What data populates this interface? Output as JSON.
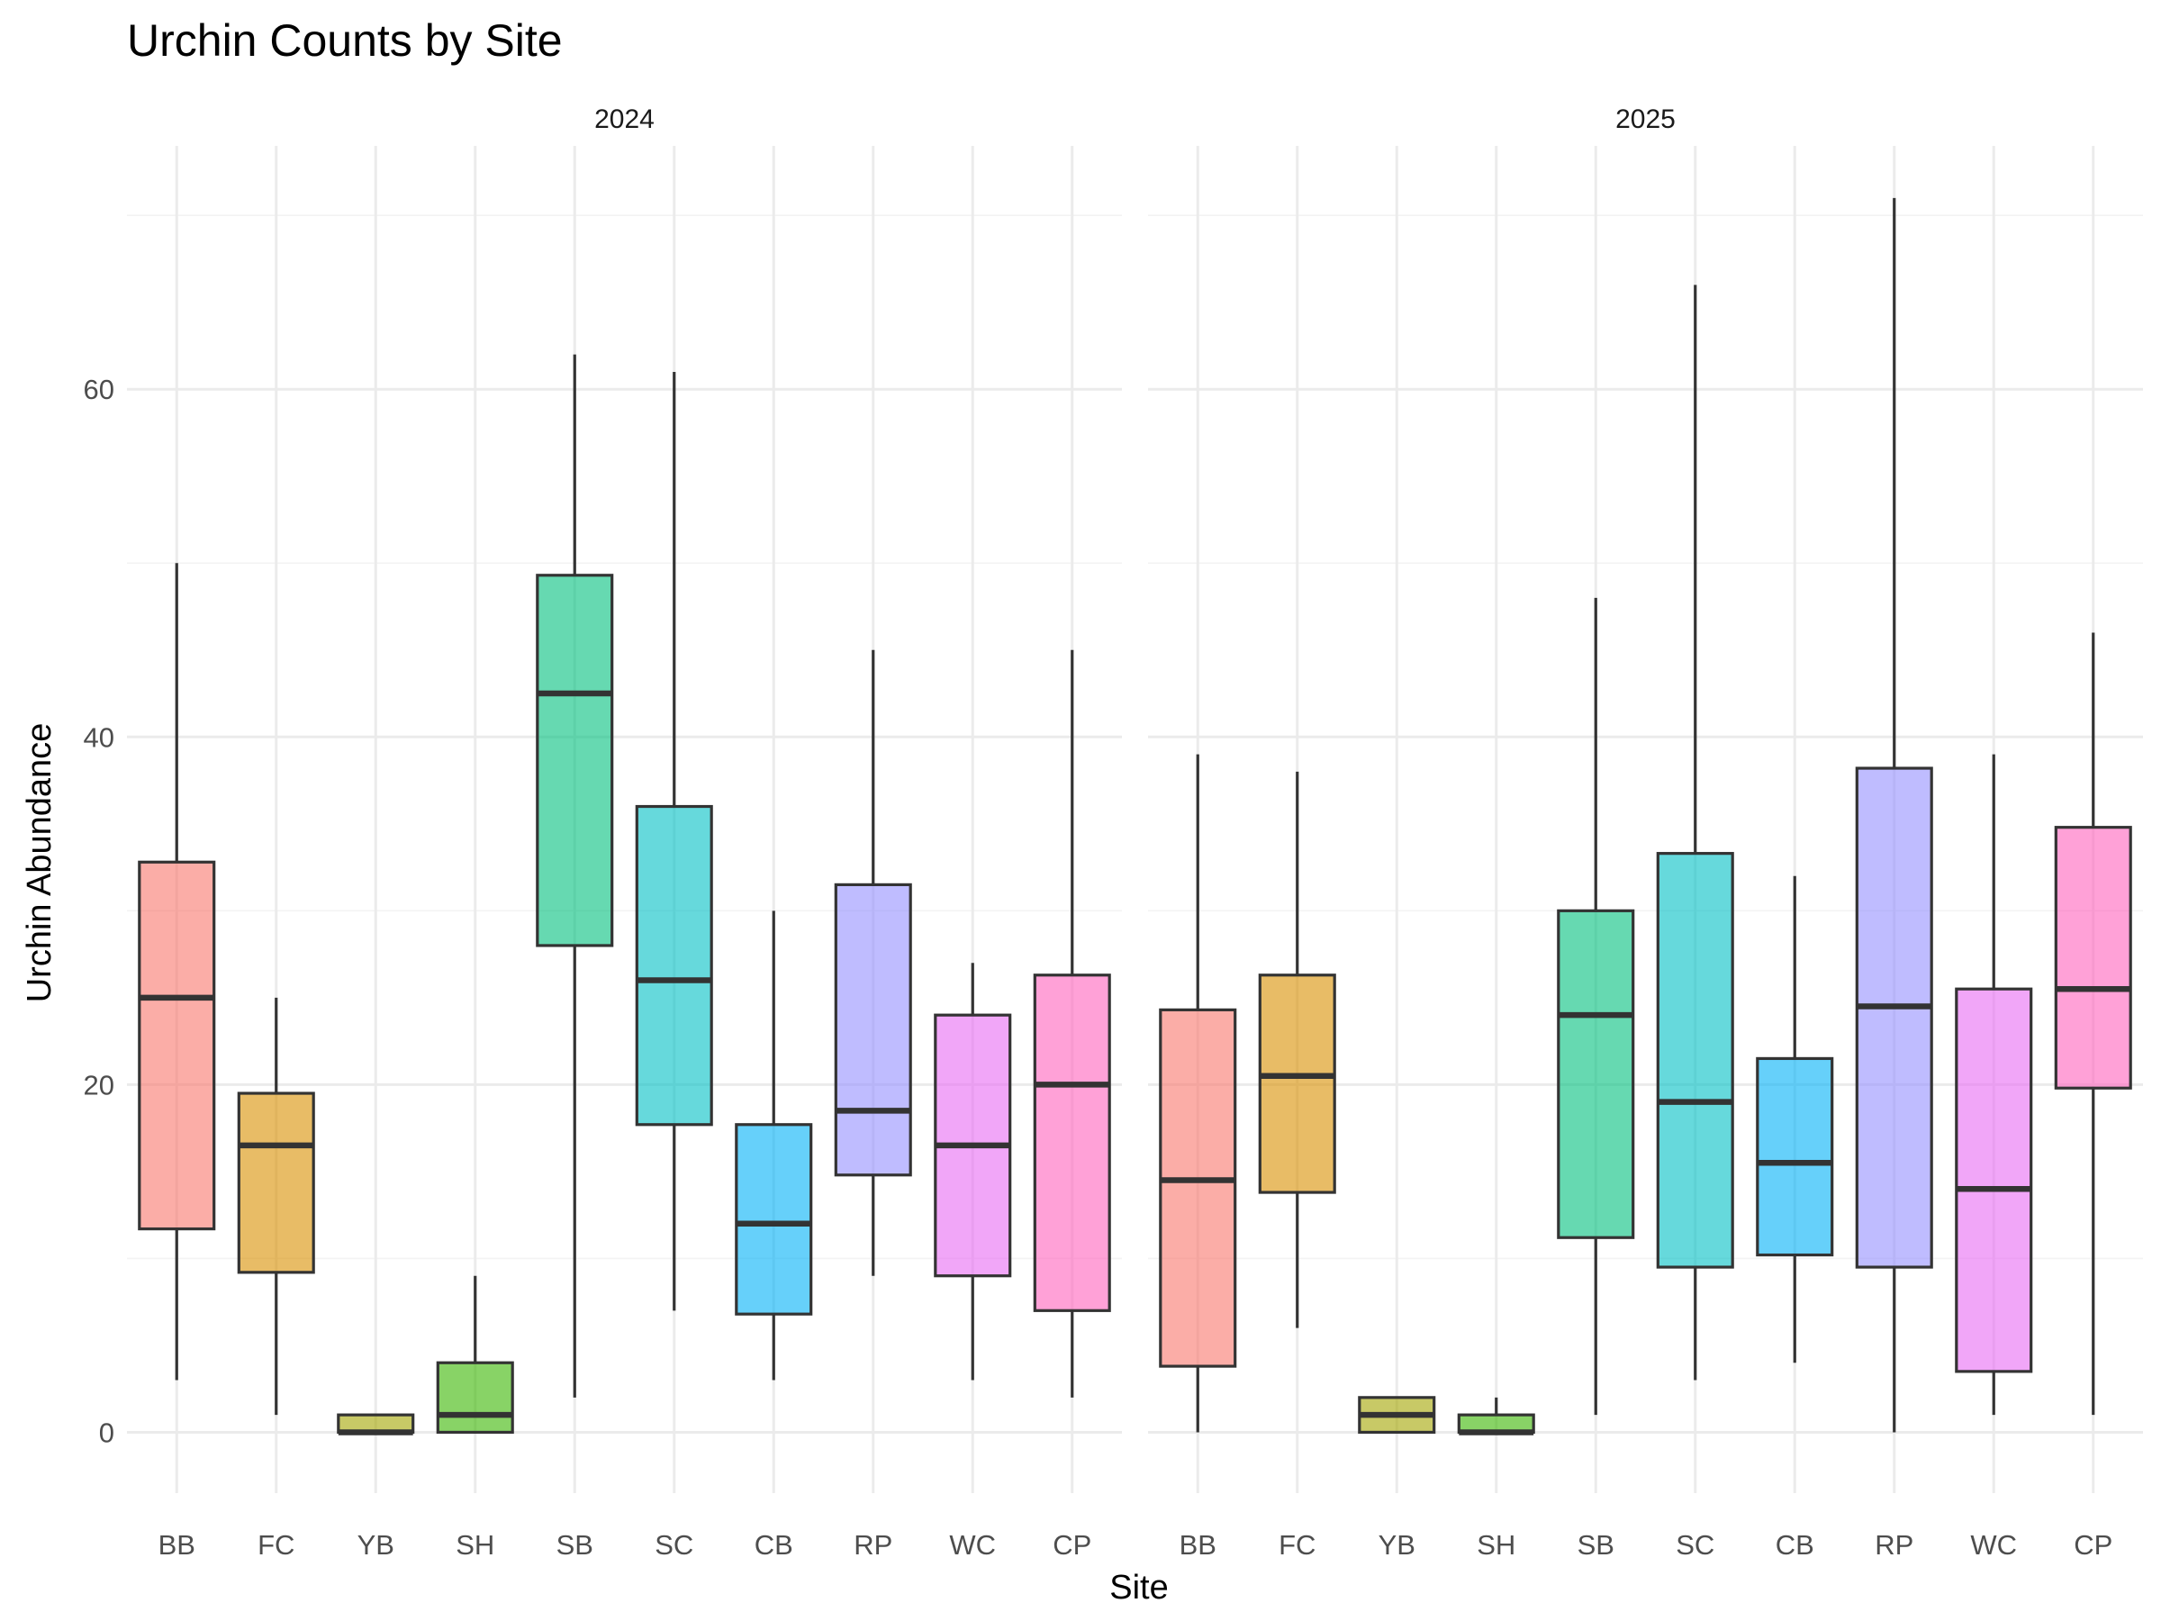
{
  "chart_data": {
    "type": "boxplot",
    "title": "Urchin Counts by Site",
    "xlabel": "Site",
    "ylabel": "Urchin Abundance",
    "ylim": [
      -3.5,
      74
    ],
    "yticks": [
      0,
      20,
      40,
      60
    ],
    "grid": true,
    "legend": "none",
    "categories": [
      "BB",
      "FC",
      "YB",
      "SH",
      "SB",
      "SC",
      "CB",
      "RP",
      "WC",
      "CP"
    ],
    "colors": [
      "#F8766D",
      "#D89000",
      "#A3A500",
      "#39B600",
      "#00BF7D",
      "#00BFC4",
      "#00B0F6",
      "#9590FF",
      "#E76BF3",
      "#FF62BC"
    ],
    "panels": [
      {
        "label": "2024",
        "boxes": [
          {
            "site": "BB",
            "min": 3,
            "q1": 11.7,
            "median": 25,
            "q3": 32.8,
            "max": 50
          },
          {
            "site": "FC",
            "min": 1,
            "q1": 9.2,
            "median": 16.5,
            "q3": 19.5,
            "max": 25
          },
          {
            "site": "YB",
            "min": 0,
            "q1": 0,
            "median": 0,
            "q3": 1,
            "max": 1
          },
          {
            "site": "SH",
            "min": 0,
            "q1": 0,
            "median": 1,
            "q3": 4,
            "max": 9
          },
          {
            "site": "SB",
            "min": 2,
            "q1": 28,
            "median": 42.5,
            "q3": 49.3,
            "max": 62
          },
          {
            "site": "SC",
            "min": 7,
            "q1": 17.7,
            "median": 26,
            "q3": 36,
            "max": 61
          },
          {
            "site": "CB",
            "min": 3,
            "q1": 6.8,
            "median": 12,
            "q3": 17.7,
            "max": 30
          },
          {
            "site": "RP",
            "min": 9,
            "q1": 14.8,
            "median": 18.5,
            "q3": 31.5,
            "max": 45
          },
          {
            "site": "WC",
            "min": 3,
            "q1": 9,
            "median": 16.5,
            "q3": 24,
            "max": 27
          },
          {
            "site": "CP",
            "min": 2,
            "q1": 7,
            "median": 20,
            "q3": 26.3,
            "max": 45
          }
        ]
      },
      {
        "label": "2025",
        "boxes": [
          {
            "site": "BB",
            "min": 0,
            "q1": 3.8,
            "median": 14.5,
            "q3": 24.3,
            "max": 39
          },
          {
            "site": "FC",
            "min": 6,
            "q1": 13.8,
            "median": 20.5,
            "q3": 26.3,
            "max": 38
          },
          {
            "site": "YB",
            "min": 0,
            "q1": 0,
            "median": 1,
            "q3": 2,
            "max": 2
          },
          {
            "site": "SH",
            "min": 0,
            "q1": 0,
            "median": 0,
            "q3": 1,
            "max": 2
          },
          {
            "site": "SB",
            "min": 1,
            "q1": 11.2,
            "median": 24,
            "q3": 30,
            "max": 48
          },
          {
            "site": "SC",
            "min": 3,
            "q1": 9.5,
            "median": 19,
            "q3": 33.3,
            "max": 66
          },
          {
            "site": "CB",
            "min": 4,
            "q1": 10.2,
            "median": 15.5,
            "q3": 21.5,
            "max": 32
          },
          {
            "site": "RP",
            "min": 0,
            "q1": 9.5,
            "median": 24.5,
            "q3": 38.2,
            "max": 71
          },
          {
            "site": "WC",
            "min": 1,
            "q1": 3.5,
            "median": 14,
            "q3": 25.5,
            "max": 39
          },
          {
            "site": "CP",
            "min": 1,
            "q1": 19.8,
            "median": 25.5,
            "q3": 34.8,
            "max": 46
          }
        ]
      }
    ]
  }
}
